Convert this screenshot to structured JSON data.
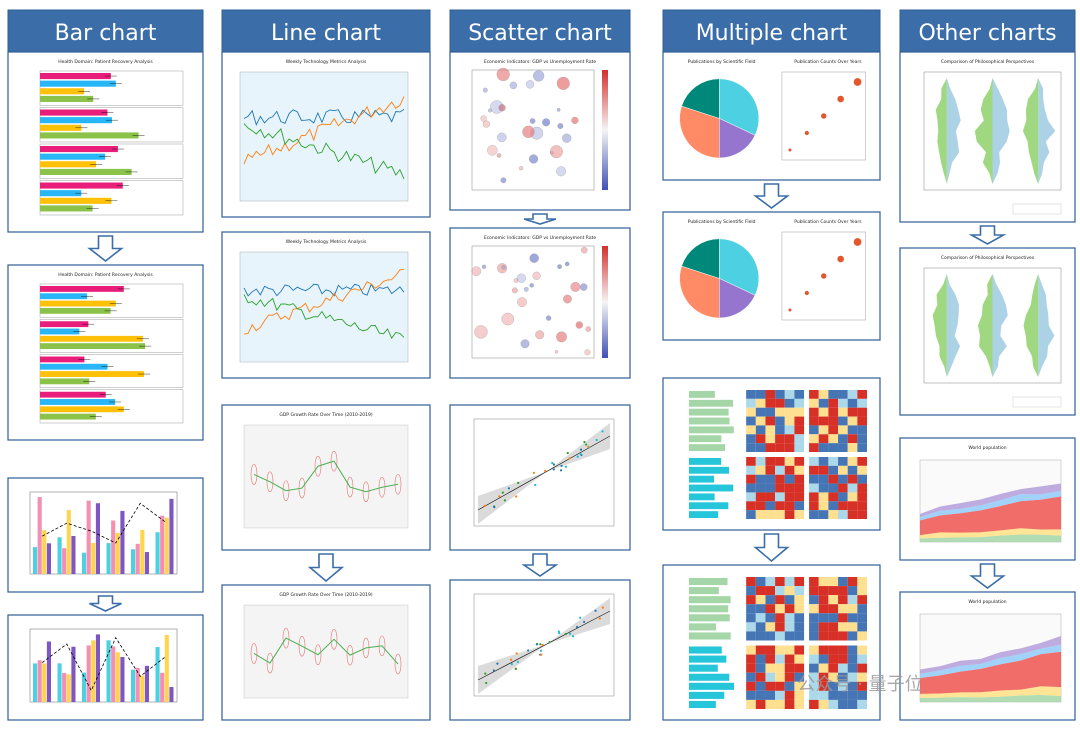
{
  "columns": [
    {
      "header": "Bar chart",
      "panels": [
        {
          "title": "Health Domain: Patient Recovery Analysis"
        },
        {
          "title": "Health Domain: Patient Recovery Analysis"
        },
        {},
        {}
      ]
    },
    {
      "header": "Line chart",
      "panels": [
        {
          "title": "Weekly Technology Metrics Analysis"
        },
        {
          "title": "Weekly Technology Metrics Analysis"
        },
        {
          "title": "GDP Growth Rate Over Time (2010-2019)"
        },
        {
          "title": "GDP Growth Rate Over Time (2010-2019)"
        }
      ]
    },
    {
      "header": "Scatter chart",
      "panels": [
        {
          "title": "Economic Indicators: GDP vs Unemployment Rate"
        },
        {
          "title": "Economic Indicators: GDP vs Unemployment Rate"
        },
        {},
        {}
      ]
    },
    {
      "header": "Multiple chart",
      "panels": [
        {
          "title": "Publications by Scientific Field",
          "title2": "Publication Counts Over Years"
        },
        {
          "title": "Publications by Scientific Field",
          "title2": "Publication Counts Over Years"
        },
        {},
        {}
      ]
    },
    {
      "header": "Other charts",
      "panels": [
        {
          "title": "Comparison of Philosophical Perspectives"
        },
        {
          "title": "Comparison of Philosophical Perspectives"
        },
        {
          "title": "World population"
        },
        {
          "title": "World population"
        }
      ]
    }
  ],
  "watermark": "公众号 · 量子位"
}
